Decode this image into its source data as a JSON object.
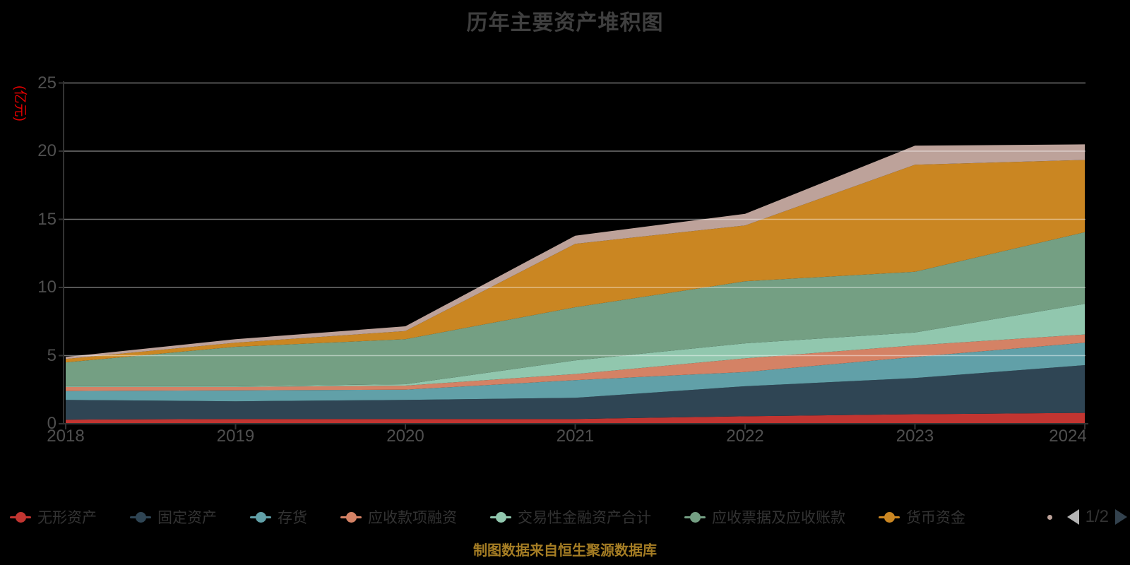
{
  "title": "历年主要资产堆积图",
  "caption": "制图数据来自恒生聚源数据库",
  "y_axis": {
    "name": "(亿元)",
    "tick_labels": [
      "0",
      "5",
      "10",
      "15",
      "20",
      "25"
    ]
  },
  "x_axis": {
    "tick_labels": [
      "2018",
      "2019",
      "2020",
      "2021",
      "2022",
      "2023",
      "2024"
    ]
  },
  "legend": {
    "items": [
      {
        "label": "无形资产",
        "color": "#c23531"
      },
      {
        "label": "固定资产",
        "color": "#2f4554"
      },
      {
        "label": "存货",
        "color": "#61a0a8"
      },
      {
        "label": "应收款项融资",
        "color": "#d48265"
      },
      {
        "label": "交易性金融资产合计",
        "color": "#91c7ae"
      },
      {
        "label": "应收票据及应收账款",
        "color": "#749f83"
      },
      {
        "label": "货币资金",
        "color": "#ca8622"
      }
    ],
    "overflow_dot_color": "#bda29a",
    "page_label": "1/2"
  },
  "colors": {
    "background": "#000000",
    "title_text": "#3f3f3f",
    "tick_text": "#4f4f4f",
    "axis_name_text": "#e60000",
    "axis_line": "#333333",
    "grid_line": "rgba(255,255,255,0.45)",
    "legend_text": "#333333",
    "caption_text": "#a57d24",
    "pager_text": "#333333",
    "pager_prev": "#b3b3b3",
    "pager_next": "#33424e"
  },
  "chart_data": {
    "type": "area",
    "stacked": true,
    "title": "历年主要资产堆积图",
    "ylabel": "(亿元)",
    "ylim": [
      0,
      25
    ],
    "grid": true,
    "legend_position": "bottom",
    "x": [
      2018,
      2019,
      2020,
      2021,
      2022,
      2023,
      2024
    ],
    "series": [
      {
        "name": "无形资产",
        "color": "#c23531",
        "values": [
          0.3,
          0.35,
          0.35,
          0.35,
          0.55,
          0.7,
          0.8
        ]
      },
      {
        "name": "固定资产",
        "color": "#2f4554",
        "values": [
          1.45,
          1.3,
          1.4,
          1.55,
          2.2,
          2.65,
          3.5
        ]
      },
      {
        "name": "存货",
        "color": "#61a0a8",
        "values": [
          0.65,
          0.8,
          0.75,
          1.3,
          1.05,
          1.55,
          1.65
        ]
      },
      {
        "name": "应收款项融资",
        "color": "#d48265",
        "values": [
          0.3,
          0.25,
          0.3,
          0.45,
          1.0,
          0.85,
          0.6
        ]
      },
      {
        "name": "交易性金融资产合计",
        "color": "#91c7ae",
        "values": [
          0.05,
          0.05,
          0.1,
          1.0,
          1.1,
          0.95,
          2.25
        ]
      },
      {
        "name": "应收票据及应收账款",
        "color": "#749f83",
        "values": [
          1.75,
          2.9,
          3.3,
          3.9,
          4.55,
          4.45,
          5.25
        ]
      },
      {
        "name": "货币资金",
        "color": "#ca8622",
        "values": [
          0.25,
          0.3,
          0.6,
          4.65,
          4.1,
          7.85,
          5.3
        ]
      },
      {
        "name": "",
        "color": "#bda29a",
        "values": [
          0.15,
          0.25,
          0.35,
          0.6,
          0.85,
          1.4,
          1.15
        ]
      }
    ]
  }
}
